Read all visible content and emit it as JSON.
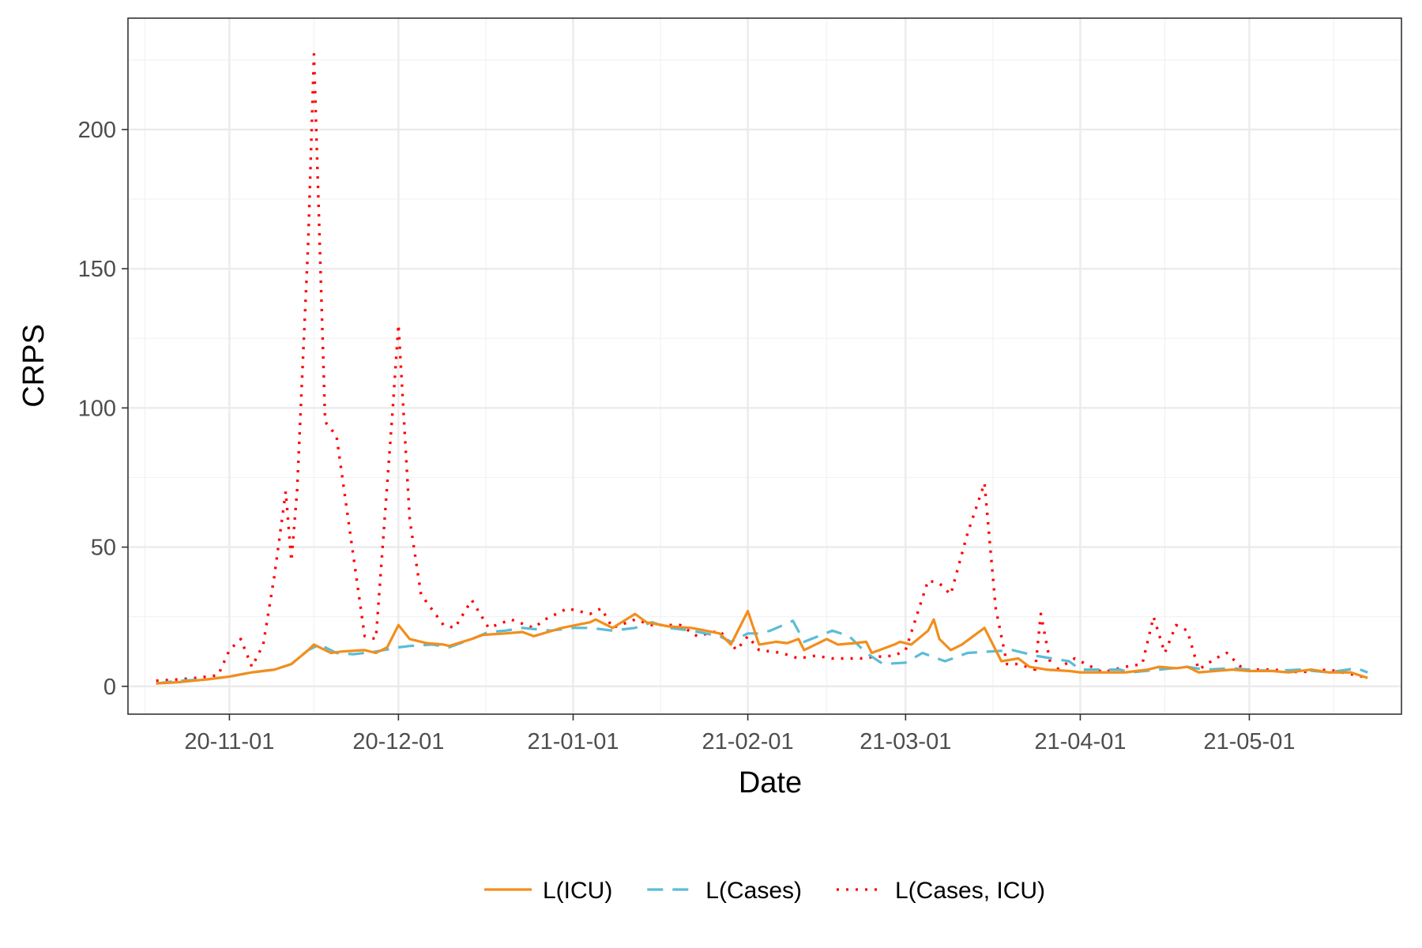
{
  "chart_data": {
    "type": "line",
    "xlabel": "Date",
    "ylabel": "CRPS",
    "ylim": [
      -10,
      240
    ],
    "xlim": [
      "2020-10-14",
      "2021-05-28"
    ],
    "grid": true,
    "legend_position": "bottom",
    "x_ticks": [
      {
        "date": "2020-11-01",
        "label": "20-11-01"
      },
      {
        "date": "2020-12-01",
        "label": "20-12-01"
      },
      {
        "date": "2021-01-01",
        "label": "21-01-01"
      },
      {
        "date": "2021-02-01",
        "label": "21-02-01"
      },
      {
        "date": "2021-03-01",
        "label": "21-03-01"
      },
      {
        "date": "2021-04-01",
        "label": "21-04-01"
      },
      {
        "date": "2021-05-01",
        "label": "21-05-01"
      }
    ],
    "y_ticks": [
      0,
      50,
      100,
      150,
      200
    ],
    "series": [
      {
        "name": "L(ICU)",
        "color": "#f28e1c",
        "dash": "solid",
        "points": [
          [
            "2020-10-19",
            1
          ],
          [
            "2020-10-23",
            1.5
          ],
          [
            "2020-10-28",
            2.5
          ],
          [
            "2020-11-01",
            3.5
          ],
          [
            "2020-11-05",
            5
          ],
          [
            "2020-11-09",
            6
          ],
          [
            "2020-11-12",
            8
          ],
          [
            "2020-11-15",
            13
          ],
          [
            "2020-11-16",
            15
          ],
          [
            "2020-11-17",
            14
          ],
          [
            "2020-11-19",
            12
          ],
          [
            "2020-11-21",
            12.5
          ],
          [
            "2020-11-25",
            13
          ],
          [
            "2020-11-27",
            12
          ],
          [
            "2020-11-29",
            14
          ],
          [
            "2020-12-01",
            22
          ],
          [
            "2020-12-03",
            17
          ],
          [
            "2020-12-06",
            15.5
          ],
          [
            "2020-12-09",
            15
          ],
          [
            "2020-12-10",
            14.5
          ],
          [
            "2020-12-14",
            17
          ],
          [
            "2020-12-16",
            18.5
          ],
          [
            "2020-12-20",
            19
          ],
          [
            "2020-12-23",
            19.5
          ],
          [
            "2020-12-25",
            18
          ],
          [
            "2020-12-30",
            21
          ],
          [
            "2021-01-04",
            23
          ],
          [
            "2021-01-05",
            24
          ],
          [
            "2021-01-08",
            21
          ],
          [
            "2021-01-12",
            26
          ],
          [
            "2021-01-14",
            23
          ],
          [
            "2021-01-18",
            21.5
          ],
          [
            "2021-01-22",
            21
          ],
          [
            "2021-01-27",
            19
          ],
          [
            "2021-01-29",
            15
          ],
          [
            "2021-02-01",
            27
          ],
          [
            "2021-02-03",
            15
          ],
          [
            "2021-02-06",
            16
          ],
          [
            "2021-02-08",
            15.5
          ],
          [
            "2021-02-10",
            17
          ],
          [
            "2021-02-11",
            13
          ],
          [
            "2021-02-15",
            17
          ],
          [
            "2021-02-17",
            15
          ],
          [
            "2021-02-20",
            15.5
          ],
          [
            "2021-02-22",
            16
          ],
          [
            "2021-02-23",
            12
          ],
          [
            "2021-02-27",
            15
          ],
          [
            "2021-02-28",
            16
          ],
          [
            "2021-03-02",
            15
          ],
          [
            "2021-03-05",
            20
          ],
          [
            "2021-03-06",
            24
          ],
          [
            "2021-03-07",
            17
          ],
          [
            "2021-03-09",
            13
          ],
          [
            "2021-03-11",
            15
          ],
          [
            "2021-03-13",
            18
          ],
          [
            "2021-03-15",
            21
          ],
          [
            "2021-03-18",
            9
          ],
          [
            "2021-03-21",
            10
          ],
          [
            "2021-03-23",
            7
          ],
          [
            "2021-03-26",
            6
          ],
          [
            "2021-03-30",
            5.5
          ],
          [
            "2021-04-01",
            5
          ],
          [
            "2021-04-05",
            5
          ],
          [
            "2021-04-09",
            5
          ],
          [
            "2021-04-13",
            6
          ],
          [
            "2021-04-15",
            7
          ],
          [
            "2021-04-18",
            6.5
          ],
          [
            "2021-04-20",
            7
          ],
          [
            "2021-04-22",
            5
          ],
          [
            "2021-04-28",
            6
          ],
          [
            "2021-05-01",
            5.5
          ],
          [
            "2021-05-05",
            5.5
          ],
          [
            "2021-05-08",
            5
          ],
          [
            "2021-05-12",
            6
          ],
          [
            "2021-05-15",
            5
          ],
          [
            "2021-05-19",
            5
          ],
          [
            "2021-05-22",
            3
          ]
        ]
      },
      {
        "name": "L(Cases)",
        "color": "#5bbcd6",
        "dash": "dashed",
        "points": [
          [
            "2020-10-19",
            1
          ],
          [
            "2020-10-23",
            2
          ],
          [
            "2020-10-28",
            2.5
          ],
          [
            "2020-11-01",
            3.5
          ],
          [
            "2020-11-05",
            5
          ],
          [
            "2020-11-09",
            6
          ],
          [
            "2020-11-12",
            8
          ],
          [
            "2020-11-15",
            13
          ],
          [
            "2020-11-17",
            15
          ],
          [
            "2020-11-20",
            12
          ],
          [
            "2020-11-23",
            11.5
          ],
          [
            "2020-11-27",
            12.5
          ],
          [
            "2020-12-01",
            14
          ],
          [
            "2020-12-03",
            14.5
          ],
          [
            "2020-12-07",
            15
          ],
          [
            "2020-12-10",
            14
          ],
          [
            "2020-12-14",
            17
          ],
          [
            "2020-12-17",
            19.5
          ],
          [
            "2020-12-20",
            20
          ],
          [
            "2020-12-23",
            21
          ],
          [
            "2020-12-28",
            20
          ],
          [
            "2021-01-01",
            21
          ],
          [
            "2021-01-04",
            21
          ],
          [
            "2021-01-08",
            20
          ],
          [
            "2021-01-12",
            21
          ],
          [
            "2021-01-15",
            23
          ],
          [
            "2021-01-18",
            21
          ],
          [
            "2021-01-22",
            20
          ],
          [
            "2021-01-27",
            18
          ],
          [
            "2021-01-29",
            16
          ],
          [
            "2021-02-01",
            19
          ],
          [
            "2021-02-03",
            19
          ],
          [
            "2021-02-05",
            20
          ],
          [
            "2021-02-09",
            23.5
          ],
          [
            "2021-02-11",
            16
          ],
          [
            "2021-02-16",
            20
          ],
          [
            "2021-02-19",
            18
          ],
          [
            "2021-02-22",
            12
          ],
          [
            "2021-02-25",
            8
          ],
          [
            "2021-03-01",
            8.5
          ],
          [
            "2021-03-04",
            12
          ],
          [
            "2021-03-08",
            9
          ],
          [
            "2021-03-12",
            12
          ],
          [
            "2021-03-16",
            12.5
          ],
          [
            "2021-03-20",
            13
          ],
          [
            "2021-03-24",
            11
          ],
          [
            "2021-03-30",
            9
          ],
          [
            "2021-04-01",
            6
          ],
          [
            "2021-04-05",
            6
          ],
          [
            "2021-04-08",
            6
          ],
          [
            "2021-04-10",
            5
          ],
          [
            "2021-04-15",
            6
          ],
          [
            "2021-04-20",
            7
          ],
          [
            "2021-04-23",
            6
          ],
          [
            "2021-04-28",
            6.5
          ],
          [
            "2021-05-01",
            6
          ],
          [
            "2021-05-05",
            5.5
          ],
          [
            "2021-05-10",
            6
          ],
          [
            "2021-05-15",
            5
          ],
          [
            "2021-05-20",
            6.5
          ],
          [
            "2021-05-22",
            5
          ]
        ]
      },
      {
        "name": "L(Cases, ICU)",
        "color": "#ff0000",
        "dash": "dotted",
        "points": [
          [
            "2020-10-19",
            2
          ],
          [
            "2020-10-23",
            2.5
          ],
          [
            "2020-10-26",
            3
          ],
          [
            "2020-10-30",
            4
          ],
          [
            "2020-11-01",
            13
          ],
          [
            "2020-11-03",
            17
          ],
          [
            "2020-11-05",
            7
          ],
          [
            "2020-11-07",
            15
          ],
          [
            "2020-11-09",
            40
          ],
          [
            "2020-11-11",
            70
          ],
          [
            "2020-11-12",
            45
          ],
          [
            "2020-11-13",
            70
          ],
          [
            "2020-11-15",
            160
          ],
          [
            "2020-11-16",
            227
          ],
          [
            "2020-11-18",
            95
          ],
          [
            "2020-11-20",
            90
          ],
          [
            "2020-11-25",
            18
          ],
          [
            "2020-11-27",
            17
          ],
          [
            "2020-11-30",
            100
          ],
          [
            "2020-12-01",
            130
          ],
          [
            "2020-12-03",
            60
          ],
          [
            "2020-12-05",
            33
          ],
          [
            "2020-12-09",
            22
          ],
          [
            "2020-12-11",
            21
          ],
          [
            "2020-12-14",
            31
          ],
          [
            "2020-12-17",
            21
          ],
          [
            "2020-12-21",
            24
          ],
          [
            "2020-12-25",
            21
          ],
          [
            "2020-12-27",
            24
          ],
          [
            "2020-12-31",
            28
          ],
          [
            "2021-01-04",
            26
          ],
          [
            "2021-01-06",
            28
          ],
          [
            "2021-01-08",
            21
          ],
          [
            "2021-01-12",
            24
          ],
          [
            "2021-01-15",
            22
          ],
          [
            "2021-01-20",
            22
          ],
          [
            "2021-01-23",
            18
          ],
          [
            "2021-01-27",
            20
          ],
          [
            "2021-01-30",
            13
          ],
          [
            "2021-02-01",
            18
          ],
          [
            "2021-02-03",
            13
          ],
          [
            "2021-02-07",
            12
          ],
          [
            "2021-02-10",
            10
          ],
          [
            "2021-02-13",
            11
          ],
          [
            "2021-02-16",
            10
          ],
          [
            "2021-02-21",
            10
          ],
          [
            "2021-02-23",
            10.5
          ],
          [
            "2021-02-27",
            11
          ],
          [
            "2021-03-01",
            13
          ],
          [
            "2021-03-05",
            38
          ],
          [
            "2021-03-07",
            37
          ],
          [
            "2021-03-09",
            33
          ],
          [
            "2021-03-12",
            55
          ],
          [
            "2021-03-15",
            73
          ],
          [
            "2021-03-17",
            28
          ],
          [
            "2021-03-19",
            8
          ],
          [
            "2021-03-21",
            8
          ],
          [
            "2021-03-24",
            6
          ],
          [
            "2021-03-25",
            26
          ],
          [
            "2021-03-27",
            5
          ],
          [
            "2021-03-31",
            10
          ],
          [
            "2021-04-05",
            5
          ],
          [
            "2021-04-09",
            7
          ],
          [
            "2021-04-12",
            8
          ],
          [
            "2021-04-14",
            25
          ],
          [
            "2021-04-16",
            12
          ],
          [
            "2021-04-18",
            22
          ],
          [
            "2021-04-20",
            20
          ],
          [
            "2021-04-22",
            6
          ],
          [
            "2021-04-25",
            10
          ],
          [
            "2021-04-27",
            12
          ],
          [
            "2021-04-30",
            6
          ],
          [
            "2021-05-05",
            6
          ],
          [
            "2021-05-10",
            5
          ],
          [
            "2021-05-15",
            6
          ],
          [
            "2021-05-20",
            4
          ],
          [
            "2021-05-22",
            3
          ]
        ]
      }
    ]
  }
}
